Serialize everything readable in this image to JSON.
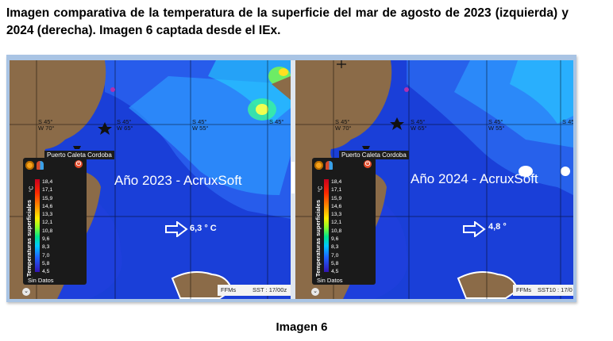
{
  "caption": "Imagen comparativa de la temperatura de la superficie del mar de agosto de 2023 (izquierda)  y 2024 (derecha). Imagen 6 captada desde el IEx.",
  "figure_caption": "Imagen 6",
  "panels": [
    {
      "year_label": "Año 2023 - AcruxSoft",
      "temp_label": "6,3 ° C",
      "port_label": "Puerto Caleta Cordoba",
      "grid_labels": [
        "S 45°\nW 70°",
        "S 45°\nW 65°",
        "S 45°\nW 55°",
        "S 45°"
      ],
      "status_left": "FFMs",
      "status_right": "SST :  17/00z"
    },
    {
      "year_label": "Año 2024 - AcruxSoft",
      "temp_label": "4,8 °",
      "port_label": "Puerto Caleta Cordoba",
      "grid_labels": [
        "S 45°\nW 70°",
        "S 45°\nW 65°",
        "S 45°\nW 55°",
        "S 45°"
      ],
      "status_left": "FFMs",
      "status_right": "SST10 :  17/0"
    }
  ],
  "legend": {
    "title": "Temperaturas superficiales",
    "unit": "°C",
    "values": [
      "18,4",
      "17,1",
      "15,9",
      "14,6",
      "13,3",
      "12,1",
      "10,8",
      "9,6",
      "8,3",
      "7,0",
      "5,8",
      "4,5"
    ],
    "no_data": "Sin Datos",
    "power_glyph": "⏻",
    "expand_glyph": "⌄"
  },
  "colors": {
    "ocean_deep": "#1a3fd8",
    "ocean_warm": "#2ea0ff",
    "land": "#8b6b48",
    "frame": "#a9c4e4"
  }
}
